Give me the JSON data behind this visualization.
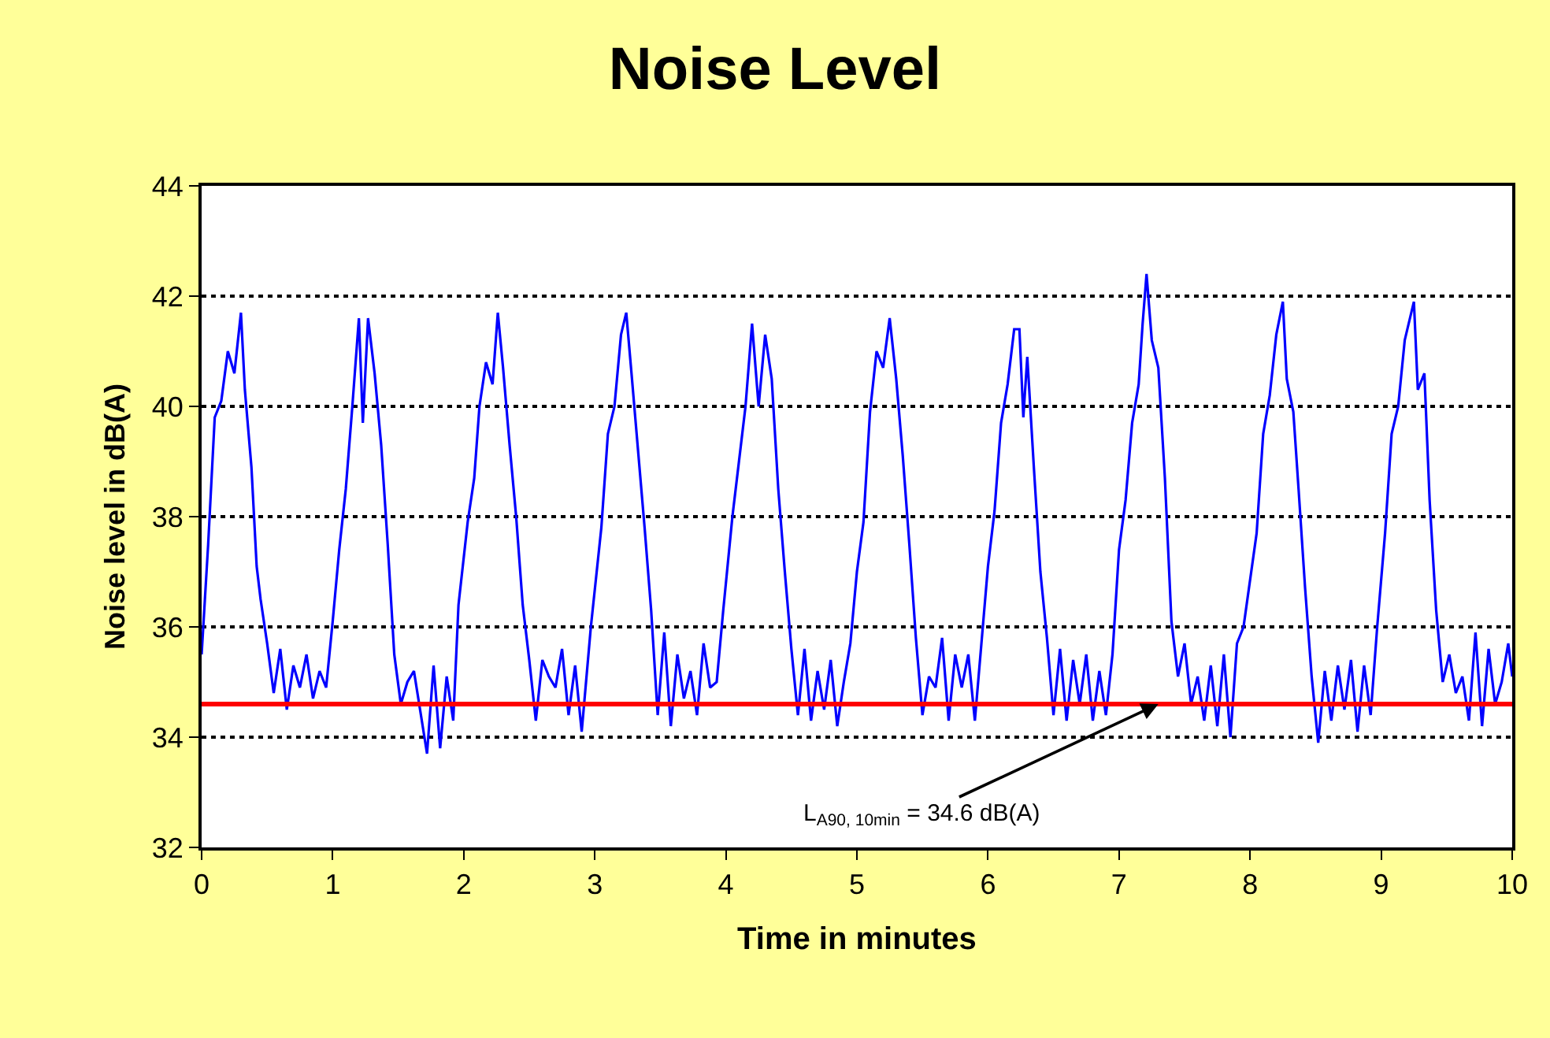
{
  "chart_data": {
    "type": "line",
    "title": "Noise Level",
    "xlabel": "Time in minutes",
    "ylabel": "Noise level in dB(A)",
    "x": [
      0,
      0.05,
      0.1,
      0.15,
      0.2,
      0.25,
      0.3,
      0.33,
      0.38,
      0.42,
      0.45,
      0.5,
      0.55,
      0.6,
      0.65,
      0.7,
      0.75,
      0.8,
      0.85,
      0.9,
      0.95,
      1.0,
      1.05,
      1.1,
      1.15,
      1.2,
      1.23,
      1.27,
      1.32,
      1.37,
      1.42,
      1.47,
      1.52,
      1.57,
      1.62,
      1.68,
      1.72,
      1.77,
      1.82,
      1.87,
      1.92,
      1.96,
      2.03,
      2.08,
      2.12,
      2.17,
      2.22,
      2.26,
      2.3,
      2.35,
      2.4,
      2.45,
      2.5,
      2.55,
      2.6,
      2.65,
      2.7,
      2.75,
      2.8,
      2.85,
      2.9,
      2.97,
      3.05,
      3.1,
      3.15,
      3.2,
      3.24,
      3.28,
      3.33,
      3.38,
      3.43,
      3.48,
      3.53,
      3.58,
      3.63,
      3.68,
      3.73,
      3.78,
      3.83,
      3.88,
      3.93,
      3.98,
      4.05,
      4.1,
      4.15,
      4.2,
      4.25,
      4.3,
      4.35,
      4.4,
      4.45,
      4.5,
      4.55,
      4.6,
      4.65,
      4.7,
      4.75,
      4.8,
      4.85,
      4.9,
      4.95,
      5.0,
      5.05,
      5.1,
      5.15,
      5.2,
      5.25,
      5.3,
      5.35,
      5.4,
      5.45,
      5.5,
      5.55,
      5.6,
      5.65,
      5.7,
      5.75,
      5.8,
      5.85,
      5.9,
      5.95,
      6.0,
      6.05,
      6.1,
      6.15,
      6.2,
      6.24,
      6.27,
      6.3,
      6.35,
      6.4,
      6.45,
      6.5,
      6.55,
      6.6,
      6.65,
      6.7,
      6.75,
      6.8,
      6.85,
      6.9,
      6.95,
      7.0,
      7.05,
      7.1,
      7.15,
      7.18,
      7.21,
      7.25,
      7.3,
      7.35,
      7.4,
      7.45,
      7.5,
      7.55,
      7.6,
      7.65,
      7.7,
      7.75,
      7.8,
      7.85,
      7.9,
      7.95,
      8.05,
      8.1,
      8.15,
      8.2,
      8.25,
      8.28,
      8.33,
      8.37,
      8.42,
      8.47,
      8.52,
      8.57,
      8.62,
      8.67,
      8.72,
      8.77,
      8.82,
      8.87,
      8.92,
      8.97,
      9.03,
      9.08,
      9.13,
      9.18,
      9.25,
      9.28,
      9.33,
      9.37,
      9.42,
      9.47,
      9.52,
      9.57,
      9.62,
      9.67,
      9.72,
      9.77,
      9.82,
      9.87,
      9.92,
      9.97,
      10.0
    ],
    "series": [
      {
        "color": "#0000ff",
        "values": [
          35.5,
          37.5,
          39.8,
          40.1,
          41.0,
          40.6,
          41.7,
          40.3,
          38.9,
          37.1,
          36.5,
          35.7,
          34.8,
          35.6,
          34.5,
          35.3,
          34.9,
          35.5,
          34.7,
          35.2,
          34.9,
          36.1,
          37.4,
          38.5,
          40.0,
          41.6,
          39.7,
          41.6,
          40.6,
          39.3,
          37.5,
          35.5,
          34.6,
          35.0,
          35.2,
          34.3,
          33.7,
          35.3,
          33.8,
          35.1,
          34.3,
          36.4,
          37.9,
          38.7,
          40.0,
          40.8,
          40.4,
          41.7,
          40.7,
          39.3,
          38.0,
          36.4,
          35.4,
          34.3,
          35.4,
          35.1,
          34.9,
          35.6,
          34.4,
          35.3,
          34.1,
          36.0,
          37.8,
          39.5,
          40.0,
          41.3,
          41.7,
          40.6,
          39.2,
          37.8,
          36.3,
          34.4,
          35.9,
          34.2,
          35.5,
          34.7,
          35.2,
          34.4,
          35.7,
          34.9,
          35.0,
          36.3,
          38.0,
          39.0,
          40.0,
          41.5,
          40.0,
          41.3,
          40.5,
          38.5,
          37.0,
          35.6,
          34.4,
          35.6,
          34.3,
          35.2,
          34.5,
          35.4,
          34.2,
          35.0,
          35.7,
          37.0,
          37.9,
          39.9,
          41.0,
          40.7,
          41.6,
          40.5,
          39.1,
          37.5,
          35.8,
          34.4,
          35.1,
          34.9,
          35.8,
          34.3,
          35.5,
          34.9,
          35.5,
          34.3,
          35.7,
          37.1,
          38.1,
          39.7,
          40.4,
          41.4,
          41.4,
          39.8,
          40.9,
          38.9,
          37.0,
          35.8,
          34.4,
          35.6,
          34.3,
          35.4,
          34.6,
          35.5,
          34.3,
          35.2,
          34.4,
          35.5,
          37.4,
          38.3,
          39.7,
          40.4,
          41.5,
          42.4,
          41.2,
          40.7,
          38.7,
          36.1,
          35.1,
          35.7,
          34.6,
          35.1,
          34.3,
          35.3,
          34.2,
          35.5,
          34.0,
          35.7,
          36.0,
          37.7,
          39.5,
          40.2,
          41.3,
          41.9,
          40.5,
          39.9,
          38.5,
          36.7,
          35.1,
          33.9,
          35.2,
          34.3,
          35.3,
          34.5,
          35.4,
          34.1,
          35.3,
          34.4,
          36.0,
          37.7,
          39.5,
          40.0,
          41.2,
          41.9,
          40.3,
          40.6,
          38.3,
          36.3,
          35.0,
          35.5,
          34.8,
          35.1,
          34.3,
          35.9,
          34.2,
          35.6,
          34.6,
          35.0,
          35.7,
          35.1
        ]
      }
    ],
    "xlim": [
      0,
      10
    ],
    "xticks": [
      0,
      1,
      2,
      3,
      4,
      5,
      6,
      7,
      8,
      9,
      10
    ],
    "ylim": [
      32,
      44
    ],
    "yticks": [
      32,
      34,
      36,
      38,
      40,
      42,
      44
    ],
    "grid": "y",
    "marker": "none",
    "line_style": "solid",
    "ref_lines": [
      {
        "axis": "y",
        "value": 34.6,
        "color": "#ff0000",
        "line_style": "solid"
      }
    ],
    "annotations": [
      {
        "text": "L$_{A90, 10min}$ = 34.6 dB(A)",
        "x": 7.3,
        "y": 34.6
      }
    ]
  }
}
